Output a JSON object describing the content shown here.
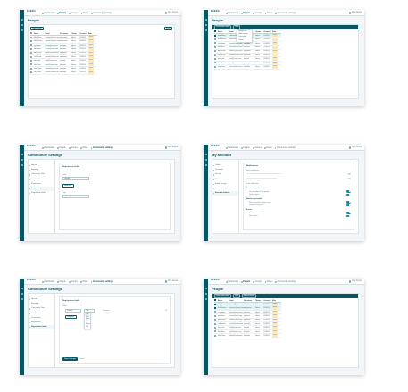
{
  "app": {
    "logo": "EXERA",
    "nav": [
      "Dashboard",
      "People",
      "Groups",
      "Roles",
      "Community settings"
    ],
    "user": "Ana Jones",
    "colors": {
      "primary": "#0b5563",
      "accent": "#0b8fa0",
      "badge": "#f7e9b8"
    }
  },
  "people": {
    "title": "People",
    "add_label": "Add people",
    "filter_label": "Filter",
    "columns": [
      "Name",
      "Email",
      "Username",
      "Status",
      "Created",
      "Role"
    ],
    "rows": [
      [
        "Ellen Moore",
        "e.moore@exera.com",
        "ellenmoore",
        "Active",
        "11/08/19",
        "Member"
      ],
      [
        "Mark Jensen",
        "m.jensen@exera.com",
        "markjensen",
        "Active",
        "11/08/19",
        "Member"
      ],
      [
        "Lisa Brown",
        "l.brown@exera.com",
        "lisabrown",
        "Active",
        "11/08/19",
        "Member"
      ],
      [
        "Tom Harris",
        "t.harris@exera.com",
        "tomharris",
        "Active",
        "11/08/19",
        "Member"
      ],
      [
        "Anna Keller",
        "a.keller@exera.com",
        "annakeller",
        "Active",
        "11/08/19",
        "Member"
      ],
      [
        "Paul Novak",
        "p.novak@exera.com",
        "paulnovak",
        "Active",
        "11/08/19",
        "Member"
      ],
      [
        "Sara Lind",
        "s.lind@exera.com",
        "saralind",
        "Active",
        "11/08/19",
        "Member"
      ],
      [
        "John Pratt",
        "j.pratt@exera.com",
        "johnpratt",
        "Active",
        "11/08/19",
        "Member"
      ],
      [
        "Nina Olsen",
        "n.olsen@exera.com",
        "ninaolsen",
        "Active",
        "11/08/19",
        "Member"
      ],
      [
        "Ben Carter",
        "b.carter@exera.com",
        "bencarter",
        "Active",
        "11/08/19",
        "Member"
      ]
    ],
    "bulk_actions": [
      "Deactivate users",
      "Edit",
      "Add to group"
    ],
    "menu_items": [
      "Assign role",
      "Add to group",
      "Deactivate",
      "Delete"
    ]
  },
  "community": {
    "title": "Community Settings",
    "nav": [
      "General",
      "Branding",
      "Community Tabs",
      "Profile fields",
      "Permissions",
      "Integrations",
      "Registration fields"
    ],
    "section": "Registration fields",
    "field1_label": "Label",
    "field1_value": "Job title",
    "add_label": "Add field",
    "field2_label": "Type",
    "field2_value": "Text",
    "dropdown_value": "Text",
    "dropdown_options": [
      "Text",
      "Date",
      "Email",
      "Number",
      "Phone",
      "URL"
    ],
    "required_label": "Required",
    "save_label": "Save changes",
    "cancel_label": "Cancel"
  },
  "account": {
    "title": "My account",
    "nav": [
      "Profile",
      "Password",
      "Security",
      "Notifications",
      "Email settings",
      "Connected apps",
      "Account deletion"
    ],
    "section": "Notifications",
    "email_label": "Email notifications",
    "push_label": "Push notifications",
    "groups": [
      {
        "name": "Community updates",
        "items": [
          "New members in my groups",
          "Weekly digest"
        ]
      },
      {
        "name": "Mentions and replies",
        "items": [
          "When someone mentions me",
          "Replies to my posts"
        ]
      },
      {
        "name": "Events",
        "items": [
          "Event reminders",
          "New events"
        ]
      }
    ],
    "on_label": "On"
  }
}
